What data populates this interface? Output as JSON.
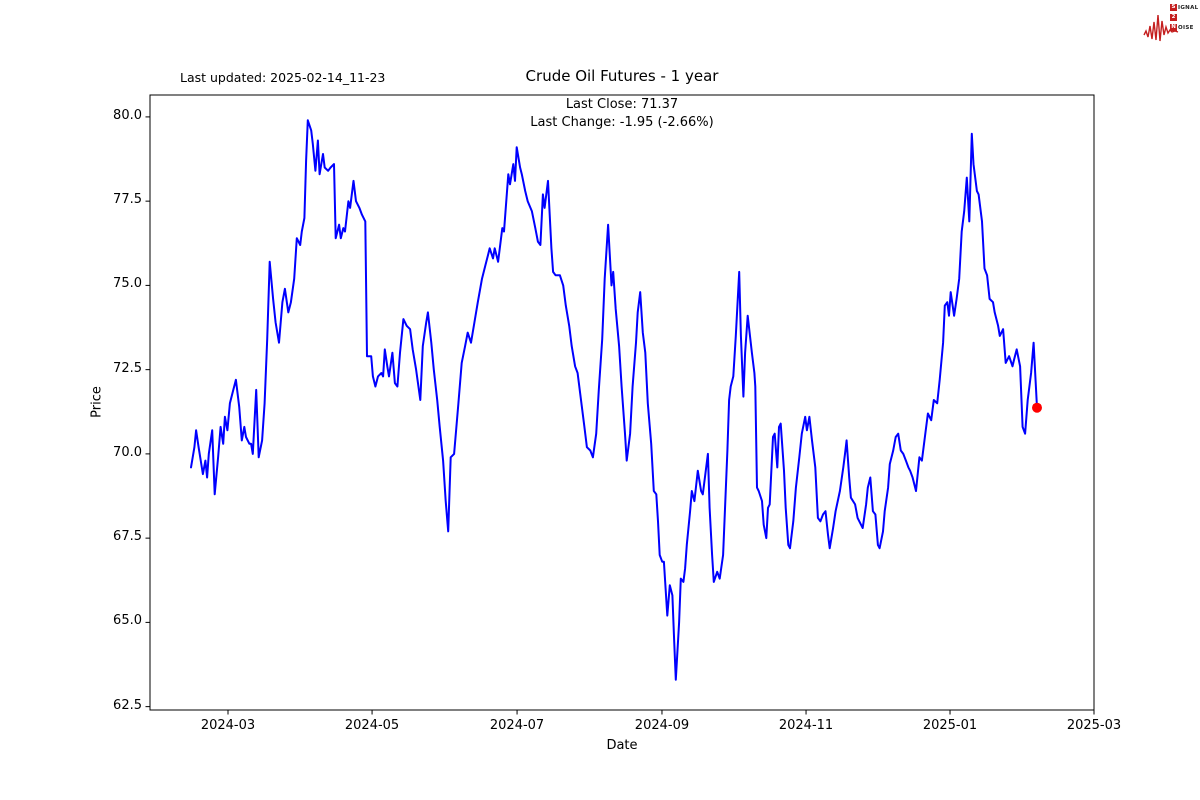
{
  "page": {
    "background": "#ffffff"
  },
  "header": {
    "last_updated": "Last updated: 2025-02-14_11-23",
    "logo": {
      "s": "S",
      "signal_rest": "IGNAL",
      "two": "2",
      "n": "N",
      "noise_rest": "OISE",
      "accent_color": "#c41f1f"
    }
  },
  "chart_data": {
    "type": "line",
    "title": "Crude Oil Futures - 1 year",
    "annotation_line1": "Last Close: 71.37",
    "annotation_line2": "Last Change: -1.95 (-2.66%)",
    "last_close": 71.37,
    "last_change": -1.95,
    "last_change_pct": -2.66,
    "xlabel": "Date",
    "ylabel": "Price",
    "period_start": "2024-02-14",
    "period_end": "2025-02-14",
    "line_color": "#0000ff",
    "marker_color": "#ff0000",
    "grid": false,
    "x_axis": {
      "t_min": -0.0485,
      "t_max": 1.0674,
      "label": "Date",
      "ticks": [
        {
          "label": "2024-03",
          "t": 0.0437
        },
        {
          "label": "2024-05",
          "t": 0.214
        },
        {
          "label": "2024-07",
          "t": 0.3854
        },
        {
          "label": "2024-09",
          "t": 0.5567
        },
        {
          "label": "2024-11",
          "t": 0.727
        },
        {
          "label": "2025-01",
          "t": 0.8972
        },
        {
          "label": "2025-03",
          "t": 1.0674
        }
      ]
    },
    "y_axis": {
      "min": 62.4,
      "max": 80.65,
      "label": "Price",
      "ticks": [
        62.5,
        65.0,
        67.5,
        70.0,
        72.5,
        75.0,
        77.5,
        80.0
      ]
    },
    "series": {
      "name": "Crude Oil Futures price",
      "t_note": "t = fraction of the 1-year span 2024-02-14 .. 2025-02-14",
      "t": [
        0.0,
        0.004,
        0.006,
        0.009,
        0.014,
        0.017,
        0.019,
        0.021,
        0.025,
        0.028,
        0.032,
        0.035,
        0.038,
        0.04,
        0.043,
        0.046,
        0.05,
        0.053,
        0.057,
        0.06,
        0.063,
        0.065,
        0.069,
        0.071,
        0.073,
        0.077,
        0.08,
        0.084,
        0.087,
        0.09,
        0.093,
        0.097,
        0.1,
        0.104,
        0.108,
        0.111,
        0.115,
        0.118,
        0.122,
        0.125,
        0.129,
        0.131,
        0.134,
        0.136,
        0.138,
        0.142,
        0.144,
        0.147,
        0.15,
        0.152,
        0.156,
        0.158,
        0.162,
        0.165,
        0.169,
        0.171,
        0.175,
        0.177,
        0.18,
        0.182,
        0.186,
        0.188,
        0.192,
        0.195,
        0.199,
        0.202,
        0.206,
        0.208,
        0.213,
        0.215,
        0.218,
        0.221,
        0.225,
        0.227,
        0.229,
        0.232,
        0.234,
        0.238,
        0.241,
        0.244,
        0.247,
        0.251,
        0.255,
        0.259,
        0.262,
        0.266,
        0.271,
        0.274,
        0.278,
        0.28,
        0.284,
        0.287,
        0.291,
        0.294,
        0.298,
        0.301,
        0.304,
        0.307,
        0.311,
        0.316,
        0.32,
        0.324,
        0.327,
        0.331,
        0.335,
        0.339,
        0.344,
        0.348,
        0.351,
        0.353,
        0.357,
        0.359,
        0.363,
        0.368,
        0.37,
        0.375,
        0.377,
        0.381,
        0.383,
        0.385,
        0.389,
        0.391,
        0.395,
        0.398,
        0.403,
        0.407,
        0.41,
        0.413,
        0.416,
        0.418,
        0.422,
        0.426,
        0.428,
        0.431,
        0.436,
        0.44,
        0.443,
        0.447,
        0.45,
        0.454,
        0.457,
        0.461,
        0.465,
        0.468,
        0.472,
        0.475,
        0.479,
        0.482,
        0.486,
        0.489,
        0.493,
        0.497,
        0.499,
        0.502,
        0.506,
        0.509,
        0.513,
        0.515,
        0.519,
        0.522,
        0.526,
        0.528,
        0.531,
        0.534,
        0.537,
        0.54,
        0.544,
        0.547,
        0.55,
        0.552,
        0.554,
        0.557,
        0.559,
        0.563,
        0.566,
        0.569,
        0.571,
        0.573,
        0.577,
        0.579,
        0.582,
        0.584,
        0.586,
        0.59,
        0.592,
        0.595,
        0.599,
        0.603,
        0.605,
        0.611,
        0.613,
        0.616,
        0.618,
        0.622,
        0.625,
        0.629,
        0.634,
        0.636,
        0.638,
        0.641,
        0.644,
        0.648,
        0.65,
        0.653,
        0.655,
        0.658,
        0.663,
        0.666,
        0.667,
        0.669,
        0.671,
        0.675,
        0.677,
        0.68,
        0.682,
        0.684,
        0.688,
        0.69,
        0.693,
        0.695,
        0.697,
        0.701,
        0.703,
        0.706,
        0.708,
        0.712,
        0.715,
        0.719,
        0.722,
        0.726,
        0.728,
        0.731,
        0.734,
        0.738,
        0.741,
        0.744,
        0.747,
        0.75,
        0.753,
        0.755,
        0.759,
        0.762,
        0.767,
        0.771,
        0.773,
        0.775,
        0.778,
        0.78,
        0.785,
        0.788,
        0.792,
        0.794,
        0.798,
        0.8,
        0.803,
        0.806,
        0.809,
        0.812,
        0.814,
        0.818,
        0.82,
        0.824,
        0.826,
        0.83,
        0.833,
        0.836,
        0.839,
        0.842,
        0.845,
        0.848,
        0.85,
        0.853,
        0.857,
        0.861,
        0.864,
        0.868,
        0.871,
        0.875,
        0.878,
        0.882,
        0.885,
        0.889,
        0.891,
        0.894,
        0.896,
        0.898,
        0.902,
        0.905,
        0.908,
        0.911,
        0.914,
        0.917,
        0.92,
        0.923,
        0.925,
        0.929,
        0.931,
        0.935,
        0.938,
        0.941,
        0.944,
        0.948,
        0.95,
        0.954,
        0.956,
        0.96,
        0.963,
        0.967,
        0.971,
        0.973,
        0.976,
        0.98,
        0.983,
        0.986,
        0.989,
        0.993,
        0.996,
        1.0
      ],
      "price": [
        69.6,
        70.2,
        70.7,
        70.2,
        69.4,
        69.8,
        69.3,
        70.0,
        70.7,
        68.8,
        69.9,
        70.8,
        70.3,
        71.1,
        70.7,
        71.5,
        71.9,
        72.2,
        71.4,
        70.4,
        70.8,
        70.5,
        70.3,
        70.3,
        70.0,
        71.9,
        69.9,
        70.4,
        71.5,
        73.4,
        75.7,
        74.6,
        73.9,
        73.3,
        74.5,
        74.9,
        74.2,
        74.5,
        75.2,
        76.4,
        76.2,
        76.6,
        77.0,
        78.7,
        79.9,
        79.6,
        79.2,
        78.4,
        79.3,
        78.3,
        78.9,
        78.5,
        78.4,
        78.5,
        78.6,
        76.4,
        76.8,
        76.4,
        76.7,
        76.6,
        77.5,
        77.3,
        78.1,
        77.5,
        77.3,
        77.1,
        76.9,
        72.9,
        72.9,
        72.3,
        72.0,
        72.3,
        72.4,
        72.3,
        73.1,
        72.6,
        72.3,
        73.0,
        72.1,
        72.0,
        73.0,
        74.0,
        73.8,
        73.7,
        73.1,
        72.5,
        71.6,
        73.2,
        73.9,
        74.2,
        73.3,
        72.5,
        71.6,
        70.8,
        69.8,
        68.6,
        67.7,
        69.9,
        70.0,
        71.5,
        72.7,
        73.2,
        73.6,
        73.3,
        73.9,
        74.5,
        75.2,
        75.6,
        75.9,
        76.1,
        75.8,
        76.1,
        75.7,
        76.7,
        76.6,
        78.3,
        78.0,
        78.6,
        78.1,
        79.1,
        78.5,
        78.3,
        77.8,
        77.5,
        77.2,
        76.7,
        76.3,
        76.2,
        77.7,
        77.3,
        78.1,
        76.1,
        75.4,
        75.3,
        75.3,
        75.0,
        74.4,
        73.8,
        73.2,
        72.6,
        72.4,
        71.6,
        70.8,
        70.2,
        70.1,
        69.9,
        70.6,
        71.9,
        73.4,
        75.2,
        76.8,
        75.0,
        75.4,
        74.3,
        73.2,
        72.0,
        70.6,
        69.8,
        70.6,
        72.0,
        73.3,
        74.2,
        74.8,
        73.6,
        73.0,
        71.5,
        70.3,
        68.9,
        68.8,
        68.0,
        67.0,
        66.8,
        66.8,
        65.2,
        66.1,
        65.8,
        64.5,
        63.3,
        65.0,
        66.3,
        66.2,
        66.6,
        67.3,
        68.3,
        68.9,
        68.6,
        69.5,
        68.9,
        68.8,
        70.0,
        68.4,
        67.0,
        66.2,
        66.5,
        66.3,
        67.0,
        70.1,
        71.6,
        72.0,
        72.3,
        73.5,
        75.4,
        73.5,
        71.7,
        73.0,
        74.1,
        73.0,
        72.4,
        72.0,
        69.0,
        68.9,
        68.6,
        67.9,
        67.5,
        68.4,
        68.5,
        70.5,
        70.6,
        69.6,
        70.8,
        70.9,
        69.5,
        68.4,
        67.3,
        67.2,
        68.0,
        69.0,
        69.9,
        70.6,
        71.1,
        70.7,
        71.1,
        70.4,
        69.6,
        68.1,
        68.0,
        68.2,
        68.3,
        67.6,
        67.2,
        67.8,
        68.3,
        68.9,
        69.6,
        70.0,
        70.4,
        69.3,
        68.7,
        68.5,
        68.1,
        67.9,
        67.8,
        68.5,
        69.0,
        69.3,
        68.3,
        68.2,
        67.3,
        67.2,
        67.7,
        68.3,
        69.0,
        69.7,
        70.1,
        70.5,
        70.6,
        70.1,
        70.0,
        69.8,
        69.6,
        69.5,
        69.3,
        68.9,
        69.9,
        69.8,
        70.6,
        71.2,
        71.0,
        71.6,
        71.5,
        72.2,
        73.3,
        74.4,
        74.5,
        74.1,
        74.8,
        74.1,
        74.6,
        75.2,
        76.6,
        77.2,
        78.2,
        76.9,
        79.5,
        78.6,
        77.8,
        77.7,
        76.9,
        75.5,
        75.3,
        74.6,
        74.5,
        74.2,
        73.8,
        73.5,
        73.7,
        72.7,
        72.9,
        72.6,
        72.8,
        73.1,
        72.6,
        70.8,
        70.6,
        71.6,
        72.4,
        73.3,
        71.37
      ]
    }
  }
}
